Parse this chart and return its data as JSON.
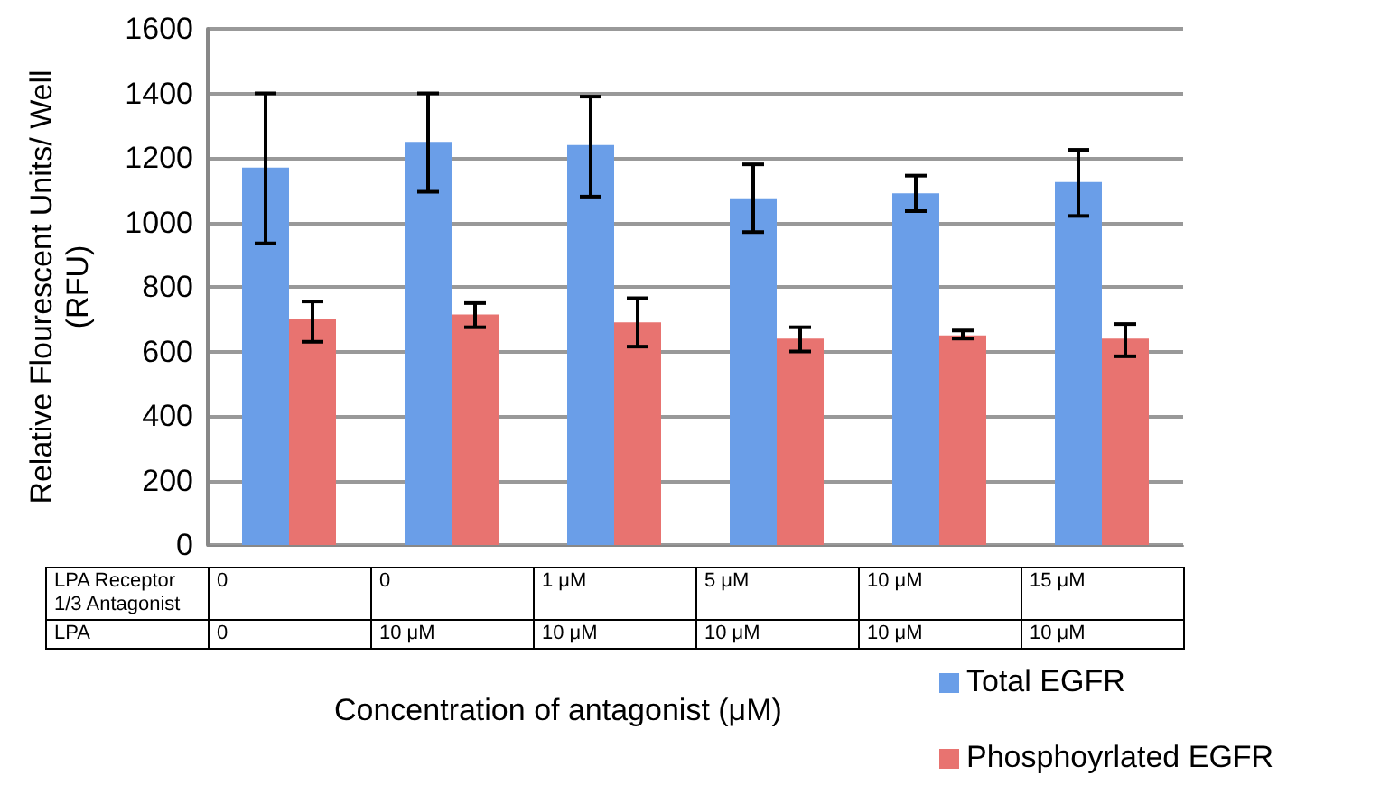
{
  "chart_data": {
    "type": "bar",
    "xlabel": "Concentration of antagonist (μM)",
    "ylabel": "Relative Flourescent Units/ Well\n(RFU)",
    "categories": [
      "0\n0",
      "0\n10 μM",
      "1 μM\n10 μM",
      "5 μM\n10 μM",
      "10 μM\n10 μM",
      "15 μM\n10 μM"
    ],
    "annotations": [
      "LPA Receptor 1/3 Antagonist",
      "LPA"
    ],
    "series": [
      {
        "name": "Total EGFR",
        "color": "#6a9ee8",
        "values": [
          1170,
          1250,
          1240,
          1075,
          1090,
          1125
        ],
        "errors": [
          [
            935,
            1400
          ],
          [
            1095,
            1400
          ],
          [
            1080,
            1390
          ],
          [
            970,
            1180
          ],
          [
            1035,
            1145
          ],
          [
            1020,
            1225
          ]
        ]
      },
      {
        "name": "Phosphoyrlated EGFR",
        "color": "#e87370",
        "values": [
          700,
          715,
          690,
          640,
          650,
          640
        ],
        "errors": [
          [
            630,
            755
          ],
          [
            675,
            750
          ],
          [
            615,
            765
          ],
          [
            600,
            675
          ],
          [
            640,
            665
          ],
          [
            585,
            685
          ]
        ]
      }
    ],
    "ylim": [
      0,
      1600
    ],
    "yticks": [
      0,
      200,
      400,
      600,
      800,
      1000,
      1200,
      1400,
      1600
    ],
    "grid": "y",
    "legend": "bottom right"
  }
}
